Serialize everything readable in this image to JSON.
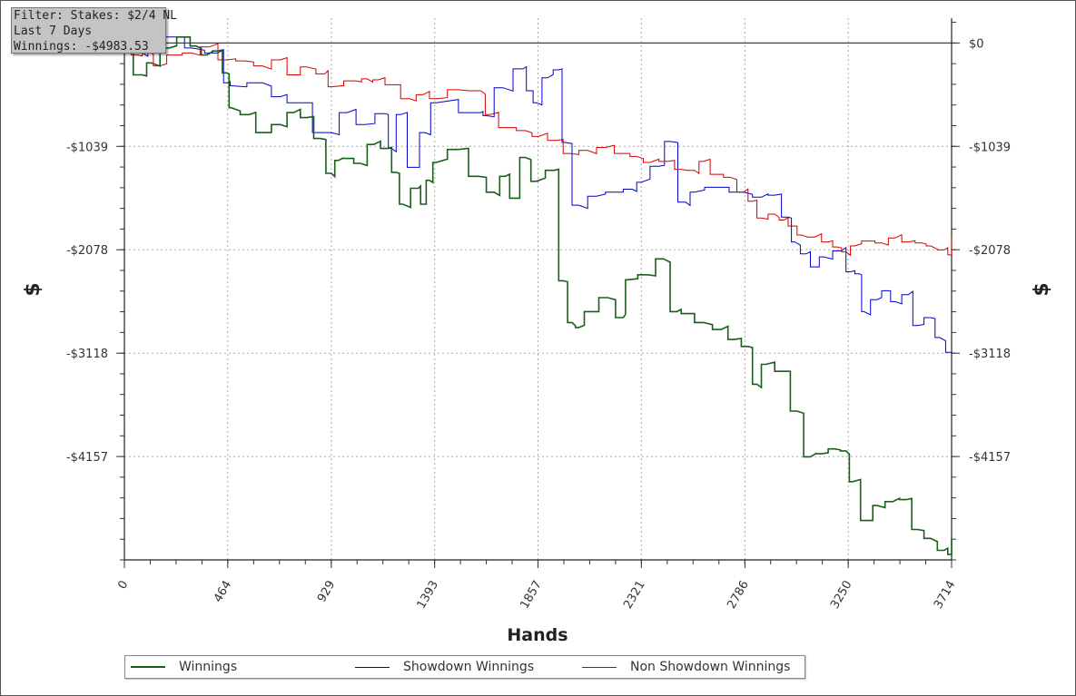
{
  "filter_box": {
    "lines": [
      "Filter: Stakes: $2/4 NL",
      "Last 7 Days",
      "Winnings: -$4983.53"
    ]
  },
  "chart_data": {
    "type": "line",
    "xlabel": "Hands",
    "ylabel": "$",
    "xlim": [
      0,
      3714
    ],
    "ylim": [
      -5196,
      250
    ],
    "x_ticks": [
      "0",
      "464",
      "929",
      "1393",
      "1857",
      "2321",
      "2786",
      "3250",
      "3714"
    ],
    "y_ticks": [
      "$0",
      "-$1039",
      "-$2078",
      "-$3118",
      "-$4157"
    ],
    "y_tick_values": [
      0,
      -1039,
      -2078,
      -3118,
      -4157
    ],
    "x_tick_values": [
      0,
      464,
      929,
      1393,
      1857,
      2321,
      2786,
      3250,
      3714
    ],
    "grid": true,
    "legend_position": "bottom",
    "series": [
      {
        "name": "Winnings",
        "color": "#1a5e1a",
        "points": [
          [
            0,
            -80
          ],
          [
            80,
            -320
          ],
          [
            120,
            -200
          ],
          [
            200,
            -50
          ],
          [
            270,
            60
          ],
          [
            320,
            -30
          ],
          [
            370,
            -120
          ],
          [
            420,
            -80
          ],
          [
            460,
            -300
          ],
          [
            480,
            -650
          ],
          [
            560,
            -720
          ],
          [
            620,
            -900
          ],
          [
            700,
            -820
          ],
          [
            760,
            -700
          ],
          [
            820,
            -750
          ],
          [
            880,
            -960
          ],
          [
            929,
            -1310
          ],
          [
            960,
            -1180
          ],
          [
            1000,
            -1160
          ],
          [
            1060,
            -1210
          ],
          [
            1120,
            -1020
          ],
          [
            1180,
            -1060
          ],
          [
            1220,
            -1300
          ],
          [
            1250,
            -1620
          ],
          [
            1320,
            -1460
          ],
          [
            1340,
            -1620
          ],
          [
            1370,
            -1380
          ],
          [
            1400,
            -1200
          ],
          [
            1500,
            -1070
          ],
          [
            1590,
            -1340
          ],
          [
            1660,
            -1500
          ],
          [
            1710,
            -1340
          ],
          [
            1750,
            -1560
          ],
          [
            1800,
            -1150
          ],
          [
            1850,
            -1390
          ],
          [
            1930,
            -1280
          ],
          [
            1970,
            -2390
          ],
          [
            2010,
            -2810
          ],
          [
            2040,
            -2860
          ],
          [
            2090,
            -2700
          ],
          [
            2170,
            -2560
          ],
          [
            2240,
            -2760
          ],
          [
            2260,
            -2380
          ],
          [
            2350,
            -2330
          ],
          [
            2420,
            -2170
          ],
          [
            2480,
            -2700
          ],
          [
            2520,
            -2720
          ],
          [
            2600,
            -2810
          ],
          [
            2680,
            -2880
          ],
          [
            2740,
            -2980
          ],
          [
            2800,
            -3050
          ],
          [
            2840,
            -3430
          ],
          [
            2880,
            -3230
          ],
          [
            2960,
            -3300
          ],
          [
            3020,
            -3700
          ],
          [
            3080,
            -4160
          ],
          [
            3130,
            -4130
          ],
          [
            3190,
            -4080
          ],
          [
            3240,
            -4100
          ],
          [
            3270,
            -4410
          ],
          [
            3340,
            -4800
          ],
          [
            3380,
            -4650
          ],
          [
            3450,
            -4610
          ],
          [
            3510,
            -4590
          ],
          [
            3560,
            -4890
          ],
          [
            3620,
            -4980
          ],
          [
            3680,
            -5100
          ],
          [
            3714,
            -5140
          ],
          [
            3714,
            -4983.53
          ]
        ]
      },
      {
        "name": "Showdown Winnings",
        "color": "#0000cc",
        "points": [
          [
            0,
            -50
          ],
          [
            40,
            -60
          ],
          [
            80,
            -100
          ],
          [
            130,
            150
          ],
          [
            240,
            60
          ],
          [
            300,
            -50
          ],
          [
            420,
            -100
          ],
          [
            470,
            -400
          ],
          [
            480,
            -430
          ],
          [
            620,
            -400
          ],
          [
            700,
            -540
          ],
          [
            760,
            -600
          ],
          [
            929,
            -900
          ],
          [
            1000,
            -700
          ],
          [
            1080,
            -820
          ],
          [
            1170,
            -710
          ],
          [
            1200,
            -1060
          ],
          [
            1240,
            -720
          ],
          [
            1300,
            -1250
          ],
          [
            1350,
            -900
          ],
          [
            1400,
            -600
          ],
          [
            1600,
            -700
          ],
          [
            1620,
            -730
          ],
          [
            1700,
            -450
          ],
          [
            1790,
            -260
          ],
          [
            1820,
            -480
          ],
          [
            1850,
            -600
          ],
          [
            1900,
            -350
          ],
          [
            1950,
            -270
          ],
          [
            1980,
            -1000
          ],
          [
            2040,
            -1630
          ],
          [
            2120,
            -1540
          ],
          [
            2200,
            -1500
          ],
          [
            2280,
            -1470
          ],
          [
            2320,
            -1400
          ],
          [
            2400,
            -1240
          ],
          [
            2450,
            -990
          ],
          [
            2520,
            -1600
          ],
          [
            2560,
            -1500
          ],
          [
            2650,
            -1450
          ],
          [
            2780,
            -1500
          ],
          [
            2860,
            -1550
          ],
          [
            2920,
            -1530
          ],
          [
            2980,
            -1750
          ],
          [
            3010,
            -2000
          ],
          [
            3060,
            -2120
          ],
          [
            3100,
            -2250
          ],
          [
            3140,
            -2150
          ],
          [
            3220,
            -2090
          ],
          [
            3260,
            -2300
          ],
          [
            3300,
            -2320
          ],
          [
            3320,
            -2700
          ],
          [
            3380,
            -2580
          ],
          [
            3420,
            -2490
          ],
          [
            3460,
            -2600
          ],
          [
            3520,
            -2530
          ],
          [
            3560,
            -2840
          ],
          [
            3620,
            -2760
          ],
          [
            3660,
            -2960
          ],
          [
            3714,
            -3110
          ]
        ]
      },
      {
        "name": "Non Showdown Winnings",
        "color": "#d40000",
        "points": [
          [
            0,
            0
          ],
          [
            60,
            -120
          ],
          [
            100,
            -80
          ],
          [
            160,
            -230
          ],
          [
            220,
            -120
          ],
          [
            300,
            -100
          ],
          [
            380,
            -40
          ],
          [
            460,
            -170
          ],
          [
            540,
            -180
          ],
          [
            620,
            -230
          ],
          [
            700,
            -170
          ],
          [
            760,
            -320
          ],
          [
            820,
            -240
          ],
          [
            900,
            -310
          ],
          [
            929,
            -440
          ],
          [
            1040,
            -380
          ],
          [
            1090,
            -360
          ],
          [
            1140,
            -370
          ],
          [
            1200,
            -420
          ],
          [
            1280,
            -560
          ],
          [
            1340,
            -520
          ],
          [
            1400,
            -560
          ],
          [
            1500,
            -470
          ],
          [
            1600,
            -480
          ],
          [
            1640,
            -720
          ],
          [
            1720,
            -850
          ],
          [
            1800,
            -880
          ],
          [
            1860,
            -940
          ],
          [
            1940,
            -980
          ],
          [
            2000,
            -1110
          ],
          [
            2080,
            -1080
          ],
          [
            2160,
            -1050
          ],
          [
            2240,
            -1110
          ],
          [
            2300,
            -1140
          ],
          [
            2360,
            -1200
          ],
          [
            2440,
            -1190
          ],
          [
            2500,
            -1270
          ],
          [
            2560,
            -1280
          ],
          [
            2600,
            -1190
          ],
          [
            2660,
            -1320
          ],
          [
            2720,
            -1350
          ],
          [
            2780,
            -1500
          ],
          [
            2820,
            -1590
          ],
          [
            2860,
            -1760
          ],
          [
            2920,
            -1720
          ],
          [
            2960,
            -1780
          ],
          [
            3000,
            -1840
          ],
          [
            3040,
            -1930
          ],
          [
            3100,
            -1950
          ],
          [
            3160,
            -2000
          ],
          [
            3200,
            -2050
          ],
          [
            3240,
            -2100
          ],
          [
            3280,
            -2040
          ],
          [
            3340,
            -1990
          ],
          [
            3400,
            -2010
          ],
          [
            3460,
            -1960
          ],
          [
            3520,
            -2000
          ],
          [
            3580,
            -2010
          ],
          [
            3620,
            -2040
          ],
          [
            3680,
            -2080
          ],
          [
            3714,
            -2130
          ],
          [
            3714,
            -1950
          ]
        ]
      }
    ]
  }
}
